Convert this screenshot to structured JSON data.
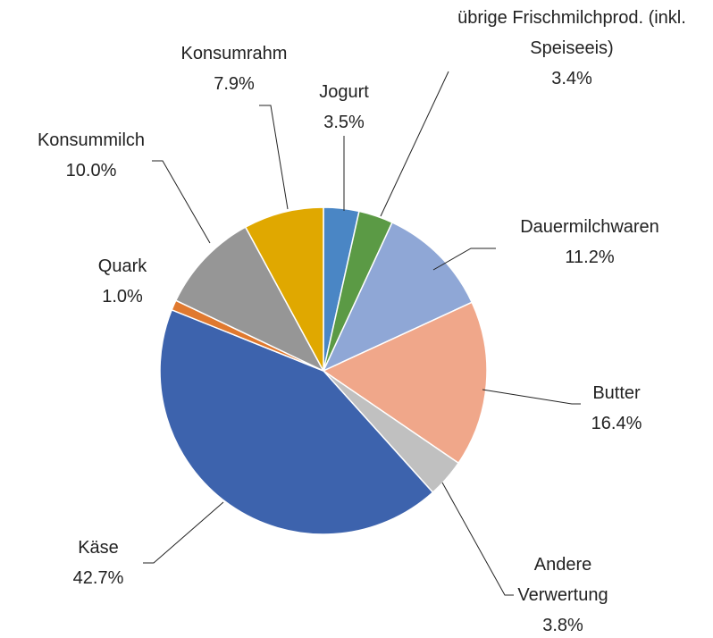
{
  "chart_data": {
    "type": "pie",
    "categories": [
      "Jogurt",
      "übrige Frischmilchprod. (inkl. Speiseeis)",
      "Dauermilchwaren",
      "Butter",
      "Andere Verwertung",
      "Käse",
      "Quark",
      "Konsummilch",
      "Konsumrahm"
    ],
    "values": [
      3.5,
      3.4,
      11.2,
      16.4,
      3.8,
      42.7,
      1.0,
      10.0,
      7.9
    ],
    "value_labels": [
      "3.5%",
      "3.4%",
      "11.2%",
      "16.4%",
      "3.8%",
      "42.7%",
      "1.0%",
      "10.0%",
      "7.9%"
    ],
    "colors": [
      "#4a86c5",
      "#5b9a45",
      "#8fa7d6",
      "#f0a78a",
      "#c0c0c0",
      "#3d63ad",
      "#e0792f",
      "#969696",
      "#e0a800"
    ]
  }
}
